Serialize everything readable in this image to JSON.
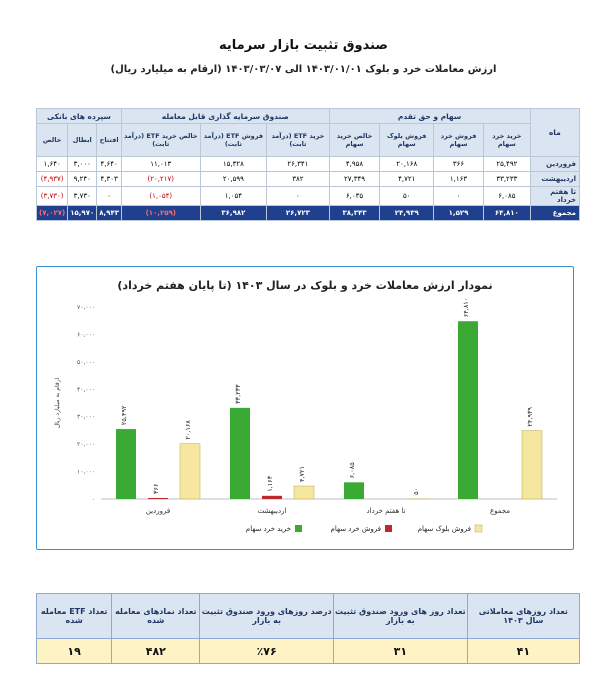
{
  "header": {
    "title": "صندوق تثبیت بازار سرمایه",
    "subtitle": "ارزش معاملات خرد و بلوک ۱۴۰۳/۰۱/۰۱ الی ۱۴۰۳/۰۳/۰۷ (ارقام به میلیارد ریال)"
  },
  "top_table": {
    "groups": {
      "month": "ماه",
      "shares": "سهام و حق تقدم",
      "etf": "صندوق سرمایه گذاری قابل معامله",
      "bank": "سپرده های بانکی"
    },
    "columns": [
      "خرید خرد سهام",
      "فروش خرد سهام",
      "فروش بلوک سهام",
      "خالص خرید سهام",
      "خرید ETF (درآمد ثابت)",
      "فروش ETF (درآمد ثابت)",
      "خالص خرید ETF (درآمد ثابت)",
      "افتتاح",
      "ابطال",
      "خالص"
    ],
    "rows": [
      {
        "month": "فروردین",
        "cells": [
          "۲۵,۴۹۲",
          "۳۶۶",
          "۲۰,۱۶۸",
          "۴,۹۵۸",
          "۲۶,۳۴۱",
          "۱۵,۳۲۸",
          "۱۱,۰۱۳",
          "۴,۶۴۰",
          "۳,۰۰۰",
          "۱,۶۴۰"
        ],
        "neg": [
          false,
          false,
          false,
          false,
          false,
          false,
          false,
          false,
          false,
          false
        ]
      },
      {
        "month": "اردیبهشت",
        "cells": [
          "۳۳,۲۳۳",
          "۱,۱۶۳",
          "۴,۷۲۱",
          "۲۷,۳۴۹",
          "۳۸۲",
          "۲۰,۵۹۹",
          "(۲۰,۲۱۷)",
          "۴,۳۰۳",
          "۹,۲۴۰",
          "(۴,۹۳۷)"
        ],
        "neg": [
          false,
          false,
          false,
          false,
          false,
          false,
          true,
          false,
          false,
          true
        ]
      },
      {
        "month": "تا هفتم خرداد",
        "cells": [
          "۶,۰۸۵",
          "۰",
          "۵۰",
          "۶,۰۳۵",
          "۰",
          "۱,۰۵۴",
          "(۱,۰۵۴)",
          "۰",
          "۳,۷۳۰",
          "(۳,۷۳۰)"
        ],
        "neg": [
          false,
          false,
          false,
          false,
          false,
          false,
          true,
          false,
          false,
          true
        ]
      },
      {
        "month": "مجموع",
        "cells": [
          "۶۴,۸۱۰",
          "۱,۵۲۹",
          "۲۴,۹۳۹",
          "۳۸,۳۴۳",
          "۲۶,۷۲۳",
          "۳۶,۹۸۲",
          "(۱۰,۲۵۹)",
          "۸,۹۴۳",
          "۱۵,۹۷۰",
          "(۷,۰۲۷)"
        ],
        "neg": [
          false,
          false,
          false,
          false,
          false,
          false,
          true,
          false,
          false,
          true
        ]
      }
    ]
  },
  "chart_data": {
    "type": "bar",
    "title": "نمودار ارزش معاملات خرد و بلوک در سال ۱۴۰۳ (تا پایان هفتم خرداد)",
    "ylabel": "ارقام به میلیارد ریال",
    "xlabel": "",
    "ylim": [
      0,
      70000
    ],
    "yticks": [
      0,
      10000,
      20000,
      30000,
      40000,
      50000,
      60000,
      70000
    ],
    "ytick_labels": [
      "۰",
      "۱۰,۰۰۰",
      "۲۰,۰۰۰",
      "۳۰,۰۰۰",
      "۴۰,۰۰۰",
      "۵۰,۰۰۰",
      "۶۰,۰۰۰",
      "۷۰,۰۰۰"
    ],
    "categories": [
      "فروردین",
      "اردیبهشت",
      "تا هفتم خرداد",
      "مجموع"
    ],
    "series": [
      {
        "name": "خرید خرد سهام",
        "color": "#3aaa35",
        "values": [
          25492,
          33233,
          6085,
          64810
        ],
        "labels": [
          "۲۵,۴۹۲",
          "۳۳,۲۳۳",
          "۶,۰۸۵",
          "۶۴,۸۱۰"
        ]
      },
      {
        "name": "فروش خرد سهام",
        "color": "#c0272d",
        "values": [
          366,
          1163,
          0,
          null
        ],
        "labels": [
          "۳۶۶",
          "۱,۱۶۳",
          "",
          ""
        ]
      },
      {
        "name": "فروش بلوک سهام",
        "color": "#f6e7a0",
        "values": [
          20168,
          4721,
          50,
          24939
        ],
        "labels": [
          "۲۰,۱۶۸",
          "۴,۷۲۱",
          "۵۰",
          "۲۴,۹۳۹"
        ]
      }
    ],
    "legend_position": "bottom",
    "grid": false
  },
  "stats_table": {
    "headers": [
      "تعداد روزهای معاملاتی سال ۱۴۰۳",
      "تعداد روز های ورود صندوق تثبیت به بازار",
      "درصد روزهای ورود صندوق تثبیت به بازار",
      "تعداد نمادهای معامله شده",
      "تعداد ETF معامله شده"
    ],
    "values": [
      "۴۱",
      "۳۱",
      "٪۷۶",
      "۴۸۲",
      "۱۹"
    ]
  }
}
